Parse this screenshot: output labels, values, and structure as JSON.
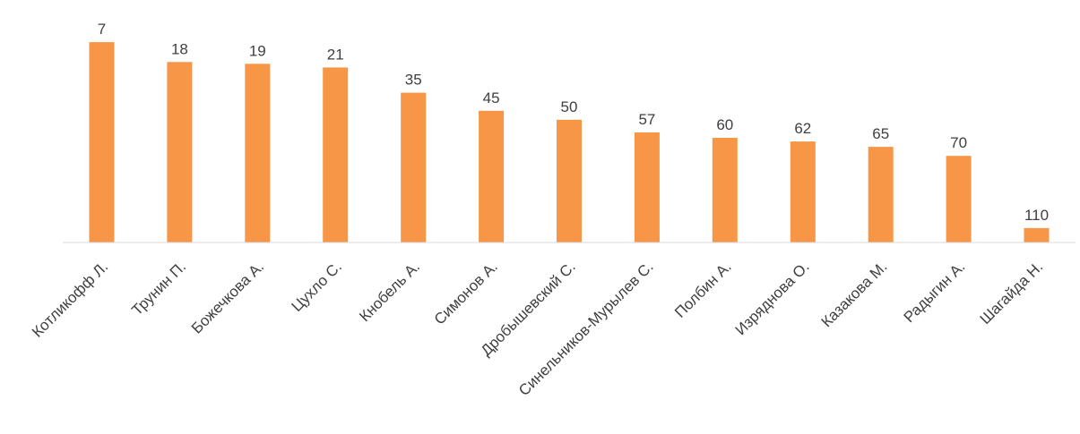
{
  "chart_data": {
    "type": "bar",
    "title": "",
    "xlabel": "",
    "ylabel": "",
    "categories": [
      "Котликофф Л.",
      "Трунин П.",
      "Божечкова А.",
      "Цухло С.",
      "Кнобель А.",
      "Симонов А.",
      "Дробышевский С.",
      "Синельников-Мурылев С.",
      "Полбин А.",
      "Изряднова О.",
      "Казакова М.",
      "Радыгин А.",
      "Шагайда Н."
    ],
    "values": [
      7,
      18,
      19,
      21,
      35,
      45,
      50,
      57,
      60,
      62,
      65,
      70,
      110
    ],
    "axis_reversed": true,
    "ylim": [
      0,
      118
    ],
    "grid": false,
    "legend": "none",
    "colors": {
      "bar": "#F79646",
      "axis": "#D9D9D9",
      "text": "#404040"
    }
  }
}
